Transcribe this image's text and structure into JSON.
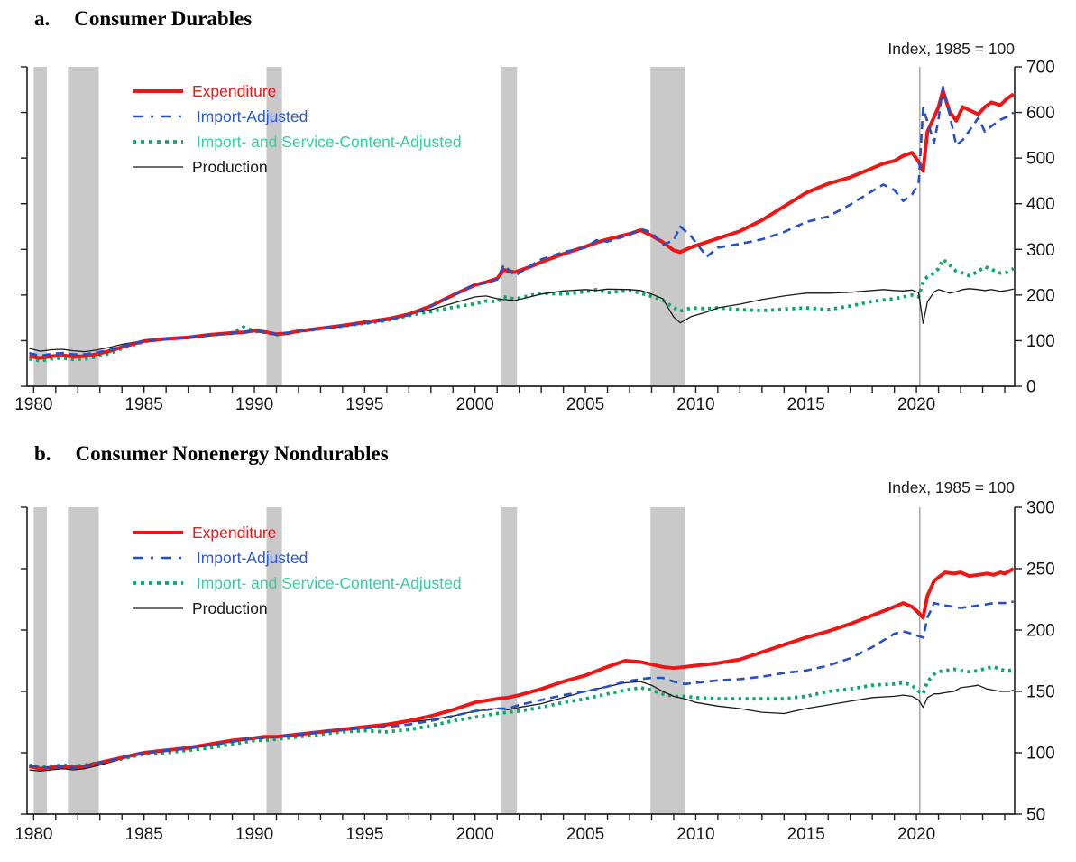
{
  "figure_note": "Index, 1985 = 100",
  "colors": {
    "expenditure": "#ee1515",
    "import_adjusted": "#2350c8",
    "import_adjusted_label": "#2a56d2",
    "import_service": "#0aa968",
    "import_service_label": "#36cf9e",
    "production": "#1a1a1a",
    "recession_band": "#c9c9c9",
    "covid_line": "#ababab",
    "axis": "#222222",
    "tick_label": "#141414"
  },
  "chart_data": [
    {
      "type": "line",
      "panel": "a",
      "title_label": "a.",
      "title": "Consumer Durables",
      "axis_note": "Index, 1985 = 100",
      "ylim": [
        0,
        700
      ],
      "ytick_step": 100,
      "yticks": [
        0,
        100,
        200,
        300,
        400,
        500,
        600,
        700
      ],
      "xlim": [
        1979.7,
        2024.45
      ],
      "xticks": [
        1980,
        1985,
        1990,
        1995,
        2000,
        2005,
        2010,
        2015,
        2020
      ],
      "minor_tick_years": [
        1980,
        2024,
        1
      ],
      "recession_bands": [
        [
          1980.0,
          1980.6
        ],
        [
          1981.55,
          1982.95
        ],
        [
          1990.55,
          1991.25
        ],
        [
          2001.2,
          2001.9
        ],
        [
          2007.95,
          2009.5
        ]
      ],
      "covid_line_x": 2020.15,
      "x": [
        1979.8,
        1980.3,
        1980.8,
        1981.3,
        1981.8,
        1982.3,
        1982.8,
        1983.5,
        1984,
        1985,
        1986,
        1987,
        1988,
        1989,
        1989.5,
        1990,
        1990.5,
        1991,
        1991.5,
        1992,
        1993,
        1994,
        1995,
        1996,
        1997,
        1998,
        1999,
        2000,
        2000.5,
        2001,
        2001.3,
        2001.8,
        2002.5,
        2003,
        2004,
        2005,
        2005.5,
        2006,
        2007,
        2007.5,
        2008,
        2008.5,
        2009,
        2009.3,
        2009.8,
        2010.5,
        2011,
        2012,
        2013,
        2014,
        2015,
        2016,
        2017,
        2018,
        2018.5,
        2019,
        2019.4,
        2019.8,
        2020.1,
        2020.3,
        2020.5,
        2020.8,
        2021,
        2021.2,
        2021.5,
        2021.8,
        2022.1,
        2022.4,
        2022.8,
        2023.1,
        2023.4,
        2023.8,
        2024.1,
        2024.4
      ],
      "series": [
        {
          "key": "expenditure",
          "label": "Expenditure",
          "color": "#ee1515",
          "label_color": "#ee1515",
          "width": 4,
          "dash": "",
          "legend_dash": "",
          "values": [
            66,
            62,
            66,
            68,
            65,
            66,
            70,
            78,
            86,
            99,
            104,
            107,
            113,
            117,
            118,
            122,
            119,
            114,
            116,
            121,
            127,
            133,
            140,
            147,
            158,
            176,
            200,
            222,
            228,
            236,
            255,
            250,
            262,
            272,
            290,
            306,
            315,
            322,
            334,
            342,
            330,
            316,
            298,
            294,
            305,
            316,
            324,
            340,
            364,
            394,
            424,
            444,
            458,
            478,
            488,
            494,
            505,
            512,
            492,
            472,
            558,
            590,
            612,
            648,
            602,
            582,
            612,
            605,
            596,
            612,
            622,
            616,
            630,
            640
          ]
        },
        {
          "key": "import_adjusted",
          "label": " Import-Adjusted",
          "color": "#2350c8",
          "label_color": "#2a56d2",
          "width": 2.6,
          "dash": "9 6",
          "legend_dash": "12 8 3 8",
          "values": [
            73,
            67,
            71,
            73,
            70,
            70,
            74,
            80,
            88,
            99,
            104,
            107,
            112,
            116,
            119,
            121,
            119,
            114,
            117,
            121,
            126,
            132,
            138,
            145,
            156,
            175,
            199,
            224,
            226,
            234,
            266,
            242,
            264,
            278,
            294,
            304,
            320,
            317,
            332,
            345,
            337,
            310,
            320,
            350,
            328,
            284,
            304,
            312,
            322,
            338,
            360,
            372,
            398,
            428,
            442,
            430,
            406,
            420,
            445,
            610,
            580,
            534,
            586,
            656,
            596,
            528,
            540,
            560,
            588,
            558,
            570,
            584,
            590,
            600
          ]
        },
        {
          "key": "import_service_adjusted",
          "label": " Import- and Service-Content-Adjusted",
          "color": "#0aa968",
          "label_color": "#36cf9e",
          "width": 3.8,
          "dash": "3.2 4.6",
          "legend_dash": "4 5",
          "values": [
            60,
            56,
            60,
            62,
            59,
            60,
            64,
            73,
            83,
            98,
            104,
            107,
            113,
            116,
            130,
            121,
            118,
            113,
            116,
            120,
            126,
            132,
            138,
            144,
            155,
            164,
            173,
            181,
            187,
            185,
            196,
            191,
            199,
            204,
            202,
            207,
            212,
            205,
            210,
            204,
            197,
            189,
            172,
            165,
            172,
            170,
            172,
            168,
            166,
            169,
            172,
            168,
            176,
            186,
            189,
            192,
            196,
            200,
            196,
            230,
            240,
            248,
            258,
            278,
            266,
            252,
            248,
            242,
            252,
            262,
            256,
            248,
            250,
            258
          ]
        },
        {
          "key": "production",
          "label": "Production",
          "color": "#1a1a1a",
          "label_color": "#1a1a1a",
          "width": 1.3,
          "dash": "",
          "legend_dash": "",
          "values": [
            83,
            77,
            80,
            81,
            78,
            76,
            79,
            86,
            92,
            100,
            104,
            108,
            114,
            118,
            120,
            122,
            120,
            115,
            117,
            122,
            128,
            135,
            143,
            150,
            158,
            168,
            182,
            196,
            198,
            192,
            190,
            188,
            196,
            202,
            209,
            212,
            210,
            213,
            212,
            210,
            202,
            192,
            152,
            139,
            153,
            163,
            172,
            180,
            190,
            198,
            204,
            204,
            206,
            210,
            212,
            210,
            209,
            211,
            205,
            138,
            185,
            207,
            212,
            209,
            204,
            207,
            212,
            214,
            212,
            210,
            212,
            208,
            210,
            213
          ]
        }
      ]
    },
    {
      "type": "line",
      "panel": "b",
      "title_label": "b.",
      "title": "Consumer Nonenergy Nondurables",
      "axis_note": "Index, 1985 = 100",
      "ylim": [
        50,
        300
      ],
      "ytick_step": 50,
      "yticks": [
        50,
        100,
        150,
        200,
        250,
        300
      ],
      "xlim": [
        1979.7,
        2024.45
      ],
      "xticks": [
        1980,
        1985,
        1990,
        1995,
        2000,
        2005,
        2010,
        2015,
        2020
      ],
      "minor_tick_years": [
        1980,
        2024,
        1
      ],
      "recession_bands": [
        [
          1980.0,
          1980.6
        ],
        [
          1981.55,
          1982.95
        ],
        [
          1990.55,
          1991.25
        ],
        [
          2001.2,
          2001.9
        ],
        [
          2007.95,
          2009.5
        ]
      ],
      "covid_line_x": 2020.15,
      "x": [
        1979.8,
        1980.3,
        1980.8,
        1981.3,
        1981.8,
        1982.3,
        1983,
        1984,
        1985,
        1986,
        1987,
        1988,
        1989,
        1990,
        1990.4,
        1991,
        1992,
        1993,
        1994,
        1995,
        1996,
        1997,
        1998,
        1999,
        2000,
        2001,
        2001.5,
        2002,
        2003,
        2004,
        2005,
        2006,
        2006.8,
        2007.5,
        2008,
        2008.5,
        2009,
        2009.5,
        2010,
        2011,
        2012,
        2013,
        2014,
        2015,
        2016,
        2017,
        2018,
        2019,
        2019.4,
        2019.8,
        2020.1,
        2020.3,
        2020.5,
        2020.8,
        2021,
        2021.3,
        2021.7,
        2022,
        2022.4,
        2022.8,
        2023.2,
        2023.5,
        2023.8,
        2024,
        2024.2,
        2024.4
      ],
      "series": [
        {
          "key": "expenditure",
          "label": "Expenditure",
          "color": "#ee1515",
          "label_color": "#ee1515",
          "width": 4,
          "dash": "",
          "legend_dash": "",
          "values": [
            89,
            87,
            88,
            89,
            88,
            89,
            92,
            96,
            100,
            102,
            104,
            107,
            110,
            112,
            113,
            113,
            115,
            117,
            119,
            121,
            123,
            126,
            130,
            135,
            141,
            144,
            145,
            147,
            152,
            158,
            163,
            170,
            175,
            174,
            172,
            170,
            169,
            170,
            171,
            173,
            176,
            182,
            188,
            194,
            199,
            205,
            212,
            219,
            222,
            219,
            214,
            210,
            228,
            240,
            243,
            247,
            246,
            247,
            244,
            245,
            246,
            245,
            247,
            246,
            248,
            250
          ]
        },
        {
          "key": "import_adjusted",
          "label": " Import-Adjusted",
          "color": "#2350c8",
          "label_color": "#2a56d2",
          "width": 2.6,
          "dash": "9 6",
          "legend_dash": "12 8 3 8",
          "values": [
            90,
            88,
            88,
            89,
            88,
            89,
            92,
            96,
            100,
            102,
            104,
            106,
            109,
            112,
            112,
            113,
            115,
            117,
            119,
            120,
            121,
            123,
            126,
            130,
            134,
            136,
            136,
            139,
            143,
            147,
            150,
            154,
            158,
            160,
            161,
            161,
            158,
            156,
            157,
            159,
            160,
            162,
            165,
            167,
            171,
            177,
            186,
            197,
            199,
            197,
            195,
            194,
            210,
            222,
            221,
            220,
            219,
            218,
            219,
            220,
            221,
            222,
            222,
            222,
            223,
            223
          ]
        },
        {
          "key": "import_service_adjusted",
          "label": " Import- and Service-Content-Adjusted",
          "color": "#0aa968",
          "label_color": "#36cf9e",
          "width": 3.8,
          "dash": "3.2 4.6",
          "legend_dash": "4 5",
          "values": [
            90,
            88,
            89,
            90,
            89,
            90,
            92,
            95,
            99,
            100,
            102,
            104,
            107,
            110,
            110,
            111,
            113,
            115,
            117,
            118,
            117,
            119,
            122,
            126,
            129,
            132,
            133,
            134,
            137,
            141,
            144,
            148,
            151,
            153,
            151,
            148,
            146,
            146,
            145,
            144,
            144,
            144,
            144,
            146,
            150,
            152,
            155,
            156,
            157,
            155,
            150,
            148,
            158,
            164,
            166,
            167,
            168,
            167,
            166,
            167,
            169,
            170,
            168,
            167,
            167,
            168
          ]
        },
        {
          "key": "production",
          "label": "Production",
          "color": "#1a1a1a",
          "label_color": "#1a1a1a",
          "width": 1.3,
          "dash": "",
          "legend_dash": "",
          "values": [
            86,
            85,
            86,
            87,
            86,
            87,
            90,
            95,
            100,
            102,
            104,
            107,
            110,
            112,
            112,
            113,
            115,
            117,
            119,
            121,
            122,
            125,
            127,
            130,
            134,
            136,
            135,
            137,
            140,
            145,
            150,
            154,
            157,
            158,
            155,
            150,
            146,
            144,
            141,
            138,
            136,
            133,
            132,
            136,
            139,
            142,
            145,
            146,
            147,
            146,
            143,
            137,
            145,
            148,
            148,
            149,
            150,
            153,
            154,
            155,
            152,
            151,
            150,
            150,
            150,
            151
          ]
        }
      ]
    }
  ]
}
